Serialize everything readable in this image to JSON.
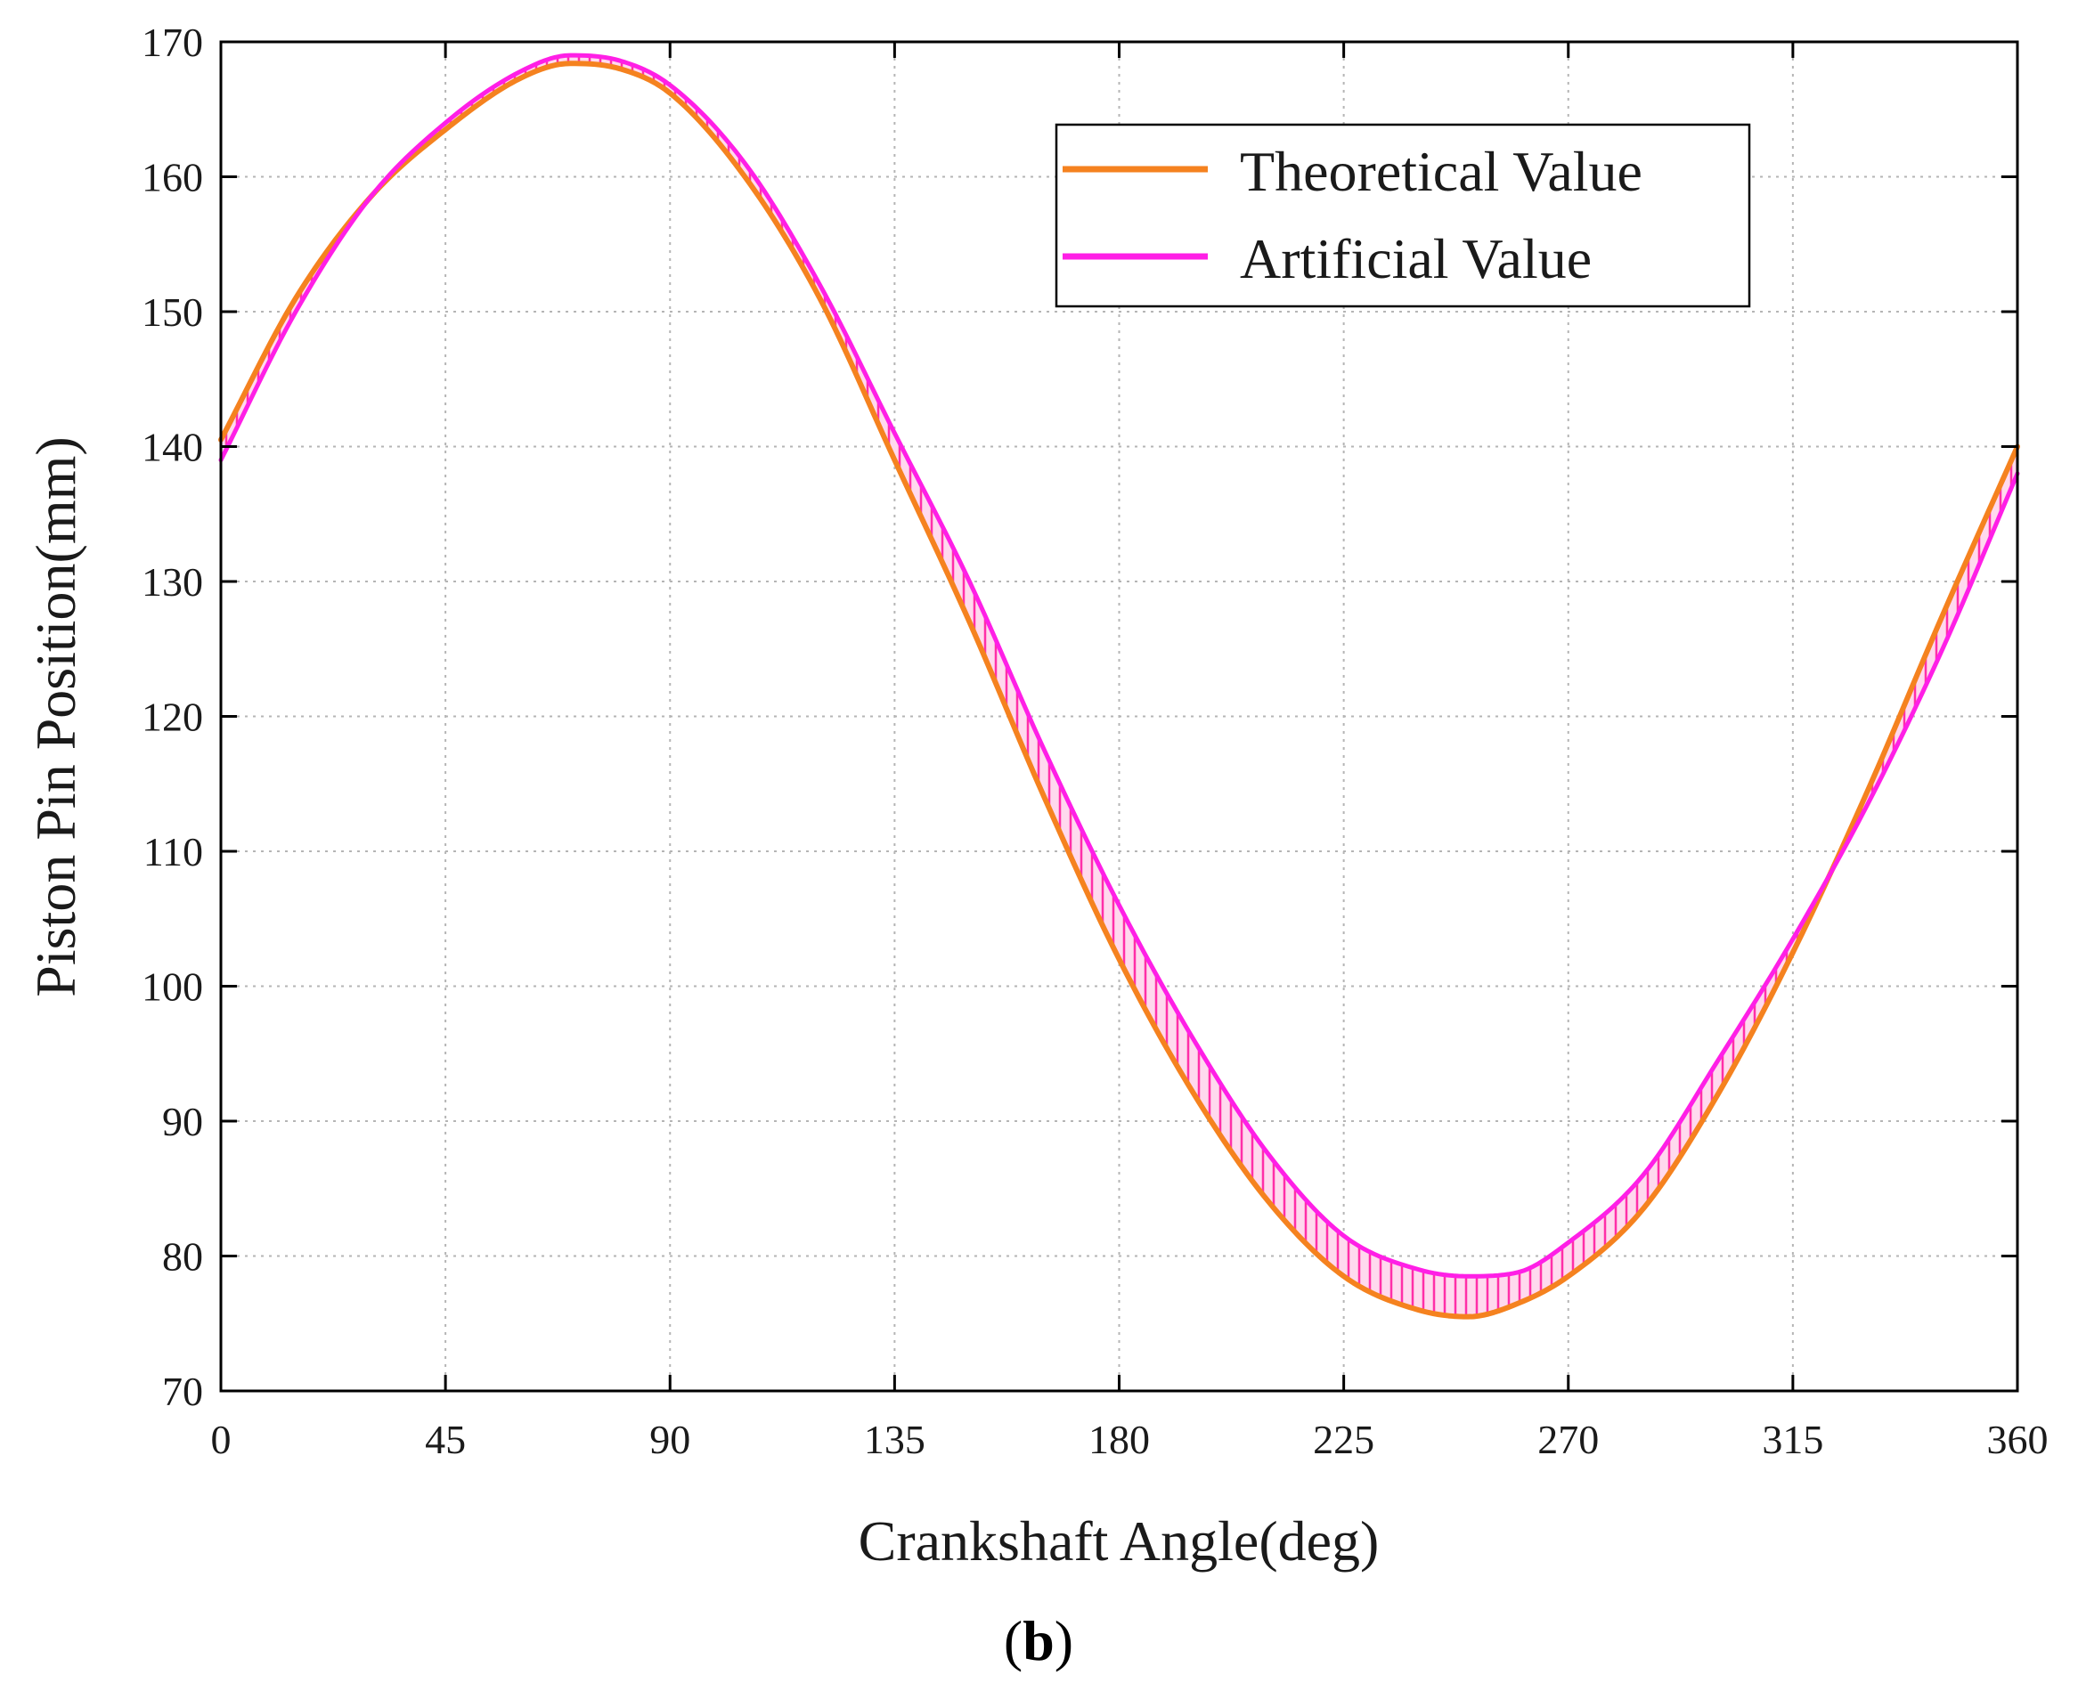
{
  "chart_data": {
    "type": "line",
    "title": "",
    "xlabel": "Crankshaft Angle(deg)",
    "ylabel": "Piston Pin Position(mm)",
    "xlim": [
      0,
      360
    ],
    "ylim": [
      70,
      170
    ],
    "xticks": [
      "0",
      "45",
      "90",
      "135",
      "180",
      "225",
      "270",
      "315",
      "360"
    ],
    "yticks": [
      "70",
      "80",
      "90",
      "100",
      "110",
      "120",
      "130",
      "140",
      "150",
      "160",
      "170"
    ],
    "grid": true,
    "legend_position": "top-right",
    "x": [
      0,
      15,
      30,
      45,
      60,
      70,
      80,
      90,
      105,
      120,
      135,
      150,
      165,
      180,
      195,
      210,
      225,
      240,
      250,
      260,
      270,
      285,
      300,
      315,
      330,
      345,
      360
    ],
    "series": [
      {
        "name": "Theoretical Value",
        "color": "#f5821f",
        "values": [
          140.5,
          151.0,
          158.5,
          163.5,
          167.3,
          168.4,
          168.0,
          166.2,
          160.0,
          151.0,
          139.0,
          127.0,
          114.0,
          102.0,
          92.0,
          84.0,
          78.5,
          76.0,
          75.5,
          76.5,
          78.5,
          83.5,
          92.0,
          102.5,
          114.5,
          127.5,
          140.0
        ]
      },
      {
        "name": "Artificial Value",
        "color": "#ff1fe6",
        "values": [
          139.0,
          150.0,
          158.5,
          164.0,
          167.8,
          169.0,
          168.6,
          166.8,
          161.0,
          152.0,
          141.0,
          130.0,
          117.5,
          106.0,
          96.0,
          87.5,
          81.5,
          79.0,
          78.5,
          78.8,
          81.0,
          86.0,
          94.5,
          103.5,
          113.5,
          125.0,
          138.0
        ]
      }
    ],
    "fill_between": {
      "series": [
        "Theoretical Value",
        "Artificial Value"
      ],
      "color": "#ff1fe6",
      "pattern": "vertical-hatch"
    },
    "caption": {
      "open": "(",
      "label": "b",
      "close": ")"
    }
  }
}
